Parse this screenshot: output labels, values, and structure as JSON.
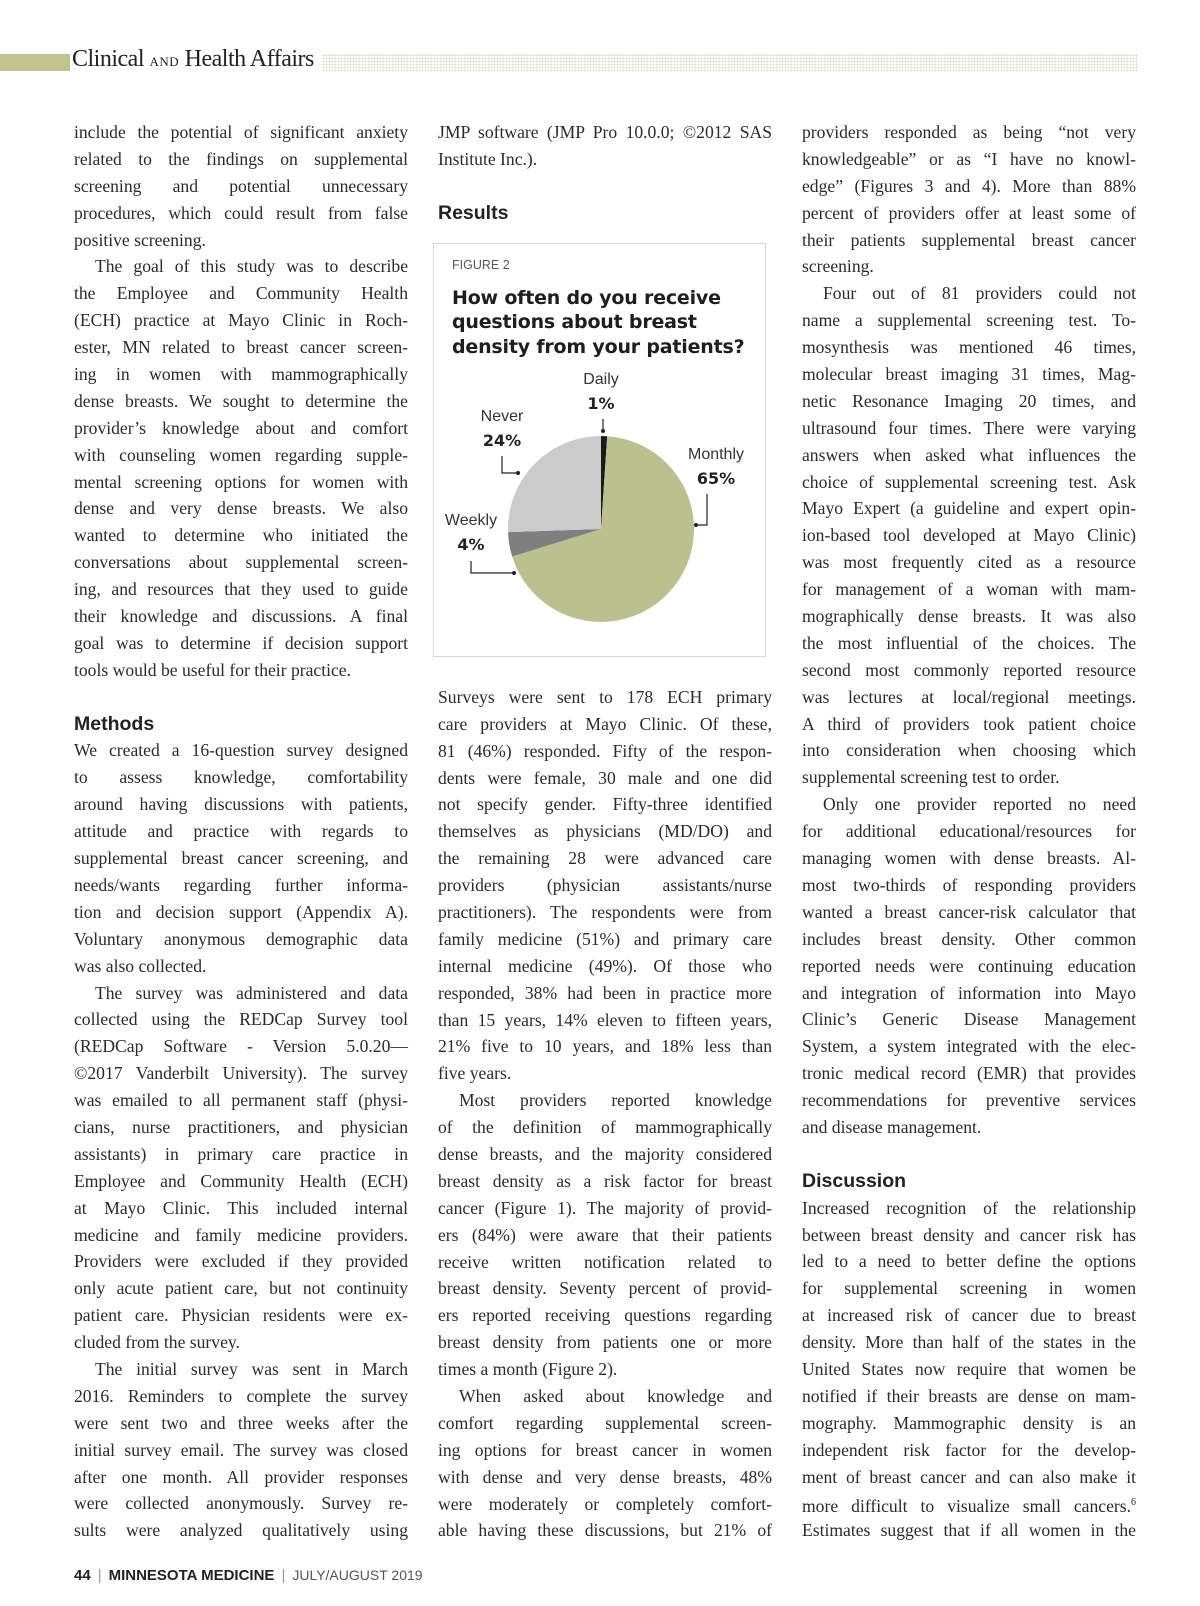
{
  "header": {
    "section_a": "Clinical",
    "section_and": "AND",
    "section_b": "Health Affairs"
  },
  "columns": [
    [
      {
        "text": "include the potential of significant anxiety"
      },
      {
        "text": "related to the findings on supplemental"
      },
      {
        "text": "screening and potential unnecessary"
      },
      {
        "text": "procedures, which could result from false"
      },
      {
        "text": "positive screening."
      },
      {
        "text": "The goal of this study was to describe",
        "indent": true
      },
      {
        "text": "the Employee and Community Health"
      },
      {
        "text": "(ECH) practice at Mayo Clinic in Roch-"
      },
      {
        "text": "ester, MN related to breast cancer screen-"
      },
      {
        "text": "ing in women with mammographically"
      },
      {
        "text": "dense breasts. We sought to determine the"
      },
      {
        "text": "provider’s knowledge about and comfort"
      },
      {
        "text": "with counseling women regarding supple-"
      },
      {
        "text": "mental screening options for women with"
      },
      {
        "text": "dense and very dense breasts. We also"
      },
      {
        "text": "wanted to determine who initiated the"
      },
      {
        "text": "conversations about supplemental screen-"
      },
      {
        "text": "ing, and resources that they used to guide"
      },
      {
        "text": "their knowledge and discussions. A final"
      },
      {
        "text": "goal was to determine if decision support"
      },
      {
        "text": "tools would be useful for their practice."
      },
      {
        "blank": true
      },
      {
        "heading": "Methods"
      },
      {
        "text": "We created a 16-question survey designed"
      },
      {
        "text": "to assess knowledge, comfortability"
      },
      {
        "text": "around having discussions with patients,"
      },
      {
        "text": "attitude and practice with regards to"
      },
      {
        "text": "supplemental breast cancer screening, and"
      },
      {
        "text": "needs/wants regarding further informa-"
      },
      {
        "text": "tion and decision support (Appendix A)."
      },
      {
        "text": "Voluntary anonymous demographic data"
      },
      {
        "text": "was also collected."
      },
      {
        "text": "The survey was administered and data",
        "indent": true
      },
      {
        "text": "collected using the REDCap Survey tool"
      },
      {
        "text": "(REDCap Software - Version 5.0.20—"
      },
      {
        "text": "©2017 Vanderbilt University). The survey"
      },
      {
        "text": "was emailed to all permanent staff (physi-"
      },
      {
        "text": "cians, nurse practitioners, and physician"
      },
      {
        "text": "assistants) in primary care practice in"
      },
      {
        "text": "Employee and Community Health (ECH)"
      },
      {
        "text": "at Mayo Clinic. This included internal"
      },
      {
        "text": "medicine and family medicine providers."
      },
      {
        "text": "Providers were excluded if they provided"
      },
      {
        "text": "only acute patient care, but not continuity"
      },
      {
        "text": "patient care. Physician residents were ex-"
      },
      {
        "text": "cluded from the survey."
      },
      {
        "text": "The initial survey was sent in March",
        "indent": true
      },
      {
        "text": "2016. Reminders to complete the survey"
      },
      {
        "text": "were sent two and three weeks after the"
      },
      {
        "text": "initial survey email. The survey was closed"
      },
      {
        "text": "after one month. All provider responses"
      },
      {
        "text": "were collected anonymously. Survey re-"
      },
      {
        "text": "sults were analyzed qualitatively using",
        "cont": true
      }
    ],
    [
      {
        "text": "JMP software (JMP Pro 10.0.0; ©2012 SAS"
      },
      {
        "text": "Institute Inc.)."
      },
      {
        "blank": true
      },
      {
        "heading": "Results"
      },
      {
        "figure": true
      },
      {
        "text": "Surveys were sent to 178 ECH primary"
      },
      {
        "text": "care providers at Mayo Clinic. Of these,"
      },
      {
        "text": "81 (46%) responded. Fifty of the respon-"
      },
      {
        "text": "dents were female, 30 male and one did"
      },
      {
        "text": "not specify gender. Fifty-three identified"
      },
      {
        "text": "themselves as physicians (MD/DO) and"
      },
      {
        "text": "the remaining 28 were advanced care"
      },
      {
        "text": "providers (physician assistants/nurse"
      },
      {
        "text": "practitioners). The respondents were from"
      },
      {
        "text": "family medicine (51%) and primary care"
      },
      {
        "text": "internal medicine (49%). Of those who"
      },
      {
        "text": "responded, 38% had been in practice more"
      },
      {
        "text": "than 15 years, 14% eleven to fifteen years,"
      },
      {
        "text": "21% five to 10 years, and 18% less than"
      },
      {
        "text": "five years."
      },
      {
        "text": "Most providers reported knowledge",
        "indent": true
      },
      {
        "text": "of the definition of mammographically"
      },
      {
        "text": "dense breasts, and the majority considered"
      },
      {
        "text": "breast density as a risk factor for breast"
      },
      {
        "text": "cancer (Figure 1). The majority of provid-"
      },
      {
        "text": "ers (84%) were aware that their patients"
      },
      {
        "text": "receive written notification related to"
      },
      {
        "text": "breast density. Seventy percent of provid-"
      },
      {
        "text": "ers reported receiving questions regarding"
      },
      {
        "text": "breast density from patients one or more"
      },
      {
        "text": "times a month (Figure 2)."
      },
      {
        "text": "When asked about knowledge and",
        "indent": true
      },
      {
        "text": "comfort regarding supplemental screen-"
      },
      {
        "text": "ing options for breast cancer in women"
      },
      {
        "text": "with dense and very dense breasts, 48%"
      },
      {
        "text": "were moderately or completely comfort-"
      },
      {
        "text": "able having these discussions, but 21% of",
        "cont": true
      }
    ],
    [
      {
        "text": "providers responded as being “not very"
      },
      {
        "text": "knowledgeable” or as “I have no knowl-"
      },
      {
        "text": "edge” (Figures 3 and 4). More than 88%"
      },
      {
        "text": "percent of providers offer at least some of"
      },
      {
        "text": "their patients supplemental breast cancer"
      },
      {
        "text": "screening."
      },
      {
        "text": "Four out of 81 providers could not",
        "indent": true
      },
      {
        "text": "name a supplemental screening test. To-"
      },
      {
        "text": "mosynthesis was mentioned 46 times,"
      },
      {
        "text": "molecular breast imaging 31 times, Mag-"
      },
      {
        "text": "netic Resonance Imaging 20 times, and"
      },
      {
        "text": "ultrasound four times. There were varying"
      },
      {
        "text": "answers when asked what influences the"
      },
      {
        "text": "choice of supplemental screening test. Ask"
      },
      {
        "text": "Mayo Expert (a guideline and expert opin-"
      },
      {
        "text": "ion-based tool developed at Mayo Clinic)"
      },
      {
        "text": "was most frequently cited as a resource"
      },
      {
        "text": "for management of a woman with mam-"
      },
      {
        "text": "mographically dense breasts. It was also"
      },
      {
        "text": "the most influential of the choices. The"
      },
      {
        "text": "second most commonly reported resource"
      },
      {
        "text": "was lectures at local/regional meetings."
      },
      {
        "text": "A third of providers took patient choice"
      },
      {
        "text": "into consideration when choosing which"
      },
      {
        "text": "supplemental screening test to order."
      },
      {
        "text": "Only one provider reported no need",
        "indent": true
      },
      {
        "text": "for additional educational/resources for"
      },
      {
        "text": "managing women with dense breasts. Al-"
      },
      {
        "text": "most two-thirds of responding providers"
      },
      {
        "text": "wanted a breast cancer-risk calculator that"
      },
      {
        "text": "includes breast density. Other common"
      },
      {
        "text": "reported needs were continuing education"
      },
      {
        "text": "and integration of information into Mayo"
      },
      {
        "text": "Clinic’s Generic Disease Management"
      },
      {
        "text": "System, a system integrated with the elec-"
      },
      {
        "text": "tronic medical record (EMR) that provides"
      },
      {
        "text": "recommendations for preventive services"
      },
      {
        "text": "and disease management."
      },
      {
        "blank": true
      },
      {
        "heading": "Discussion"
      },
      {
        "text": "Increased recognition of the relationship"
      },
      {
        "text": "between breast density and cancer risk has"
      },
      {
        "text": "led to a need to better define the options"
      },
      {
        "text": "for supplemental screening in women"
      },
      {
        "text": "at increased risk of cancer due to breast"
      },
      {
        "text": "density. More than half of the states in the"
      },
      {
        "text": "United States now require that women be"
      },
      {
        "text": "notified if their breasts are dense on mam-"
      },
      {
        "text": "mography. Mammographic density is an"
      },
      {
        "text": "independent risk factor for the develop-"
      },
      {
        "text": "ment of breast cancer and can also make it"
      },
      {
        "text": "more difficult to visualize small cancers.",
        "sup": "6"
      },
      {
        "text": "Estimates suggest that if all women in the",
        "cont": true
      }
    ]
  ],
  "figure": {
    "label": "FIGURE 2",
    "title": "How often do you receive questions about breast density from your patients?"
  },
  "chart_data": {
    "type": "pie",
    "title": "How often do you receive questions about breast density from your patients?",
    "slices": [
      {
        "label": "Daily",
        "value": 1,
        "display": "1%",
        "color": "#1a1a1a"
      },
      {
        "label": "Monthly",
        "value": 65,
        "display": "65%",
        "color": "#bcc08e"
      },
      {
        "label": "Weekly",
        "value": 4,
        "display": "4%",
        "color": "#7f7f7f"
      },
      {
        "label": "Never",
        "value": 24,
        "display": "24%",
        "color": "#cbcbcb"
      }
    ],
    "start": "top",
    "direction": "clockwise"
  },
  "footer": {
    "page": "44",
    "publication": "MINNESOTA MEDICINE",
    "issue": "JULY/AUGUST 2019"
  }
}
